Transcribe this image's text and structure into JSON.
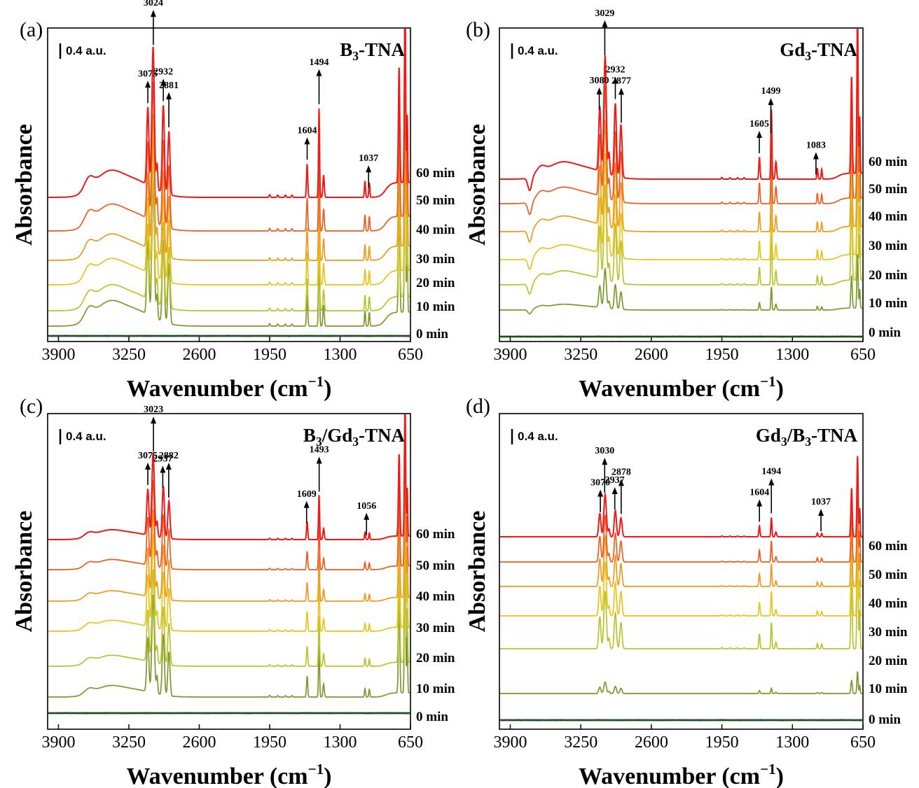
{
  "figure": {
    "colors": {
      "0 min": "#1e4d1e",
      "10 min": "#7c9a2c",
      "20 min": "#bcc22c",
      "30 min": "#e8c41c",
      "40 min": "#ef9a1e",
      "50 min": "#ee5c20",
      "60 min": "#ef1a1a"
    }
  },
  "chart_data": [
    {
      "panel": "(a)",
      "type": "line",
      "title": "B3-TNA",
      "title_parts": {
        "main": "B",
        "sub": "3",
        "rest": "-TNA"
      },
      "xlabel": "Wavenumber (cm−1)",
      "xlabel_parts": {
        "main": "Wavenumber (cm",
        "sup": "−1",
        "rest": ")"
      },
      "ylabel": "Absorbance",
      "scale_bar": "0.4 a.u.",
      "xlim": [
        4000,
        650
      ],
      "xticks": [
        3900,
        3250,
        2600,
        1950,
        1300,
        650
      ],
      "series": [
        {
          "name": "0 min"
        },
        {
          "name": "10 min"
        },
        {
          "name": "20 min"
        },
        {
          "name": "30 min"
        },
        {
          "name": "40 min"
        },
        {
          "name": "50 min"
        },
        {
          "name": "60 min"
        }
      ],
      "peak_labels": [
        {
          "text": "3075",
          "x": 3075
        },
        {
          "text": "3024",
          "x": 3024
        },
        {
          "text": "2932",
          "x": 2932
        },
        {
          "text": "2881",
          "x": 2881
        },
        {
          "text": "1604",
          "x": 1604
        },
        {
          "text": "1494",
          "x": 1494
        },
        {
          "text": "1037",
          "x": 1037
        }
      ]
    },
    {
      "panel": "(b)",
      "type": "line",
      "title": "Gd3-TNA",
      "title_parts": {
        "main": "Gd",
        "sub": "3",
        "rest": "-TNA"
      },
      "xlabel": "Wavenumber (cm−1)",
      "xlabel_parts": {
        "main": "Wavenumber (cm",
        "sup": "−1",
        "rest": ")"
      },
      "ylabel": "Absorbance",
      "scale_bar": "0.4 a.u.",
      "xlim": [
        4000,
        650
      ],
      "xticks": [
        3900,
        3250,
        2600,
        1950,
        1300,
        650
      ],
      "series": [
        {
          "name": "0 min"
        },
        {
          "name": "10 min"
        },
        {
          "name": "20 min"
        },
        {
          "name": "30 min"
        },
        {
          "name": "40 min"
        },
        {
          "name": "50 min"
        },
        {
          "name": "60 min"
        }
      ],
      "peak_labels": [
        {
          "text": "3080",
          "x": 3080
        },
        {
          "text": "3029",
          "x": 3029
        },
        {
          "text": "2932",
          "x": 2932
        },
        {
          "text": "2877",
          "x": 2877
        },
        {
          "text": "1605",
          "x": 1605
        },
        {
          "text": "1499",
          "x": 1499
        },
        {
          "text": "1083",
          "x": 1083
        }
      ]
    },
    {
      "panel": "(c)",
      "type": "line",
      "title": "B3/Gd3-TNA",
      "title_parts": {
        "main": "B",
        "sub": "3",
        "mid": "/Gd",
        "sub2": "3",
        "rest": "-TNA"
      },
      "xlabel": "Wavenumber (cm−1)",
      "xlabel_parts": {
        "main": "Wavenumber (cm",
        "sup": "−1",
        "rest": ")"
      },
      "ylabel": "Absorbance",
      "scale_bar": "0.4 a.u.",
      "xlim": [
        4000,
        650
      ],
      "xticks": [
        3900,
        3250,
        2600,
        1950,
        1300,
        650
      ],
      "series": [
        {
          "name": "0 min"
        },
        {
          "name": "10 min"
        },
        {
          "name": "20 min"
        },
        {
          "name": "30 min"
        },
        {
          "name": "40 min"
        },
        {
          "name": "50 min"
        },
        {
          "name": "60 min"
        }
      ],
      "peak_labels": [
        {
          "text": "3075",
          "x": 3075
        },
        {
          "text": "3023",
          "x": 3023
        },
        {
          "text": "2937",
          "x": 2937
        },
        {
          "text": "2882",
          "x": 2882
        },
        {
          "text": "1609",
          "x": 1609
        },
        {
          "text": "1493",
          "x": 1493
        },
        {
          "text": "1056",
          "x": 1056
        }
      ]
    },
    {
      "panel": "(d)",
      "type": "line",
      "title": "Gd3/B3-TNA",
      "title_parts": {
        "main": "Gd",
        "sub": "3",
        "mid": "/B",
        "sub2": "3",
        "rest": "-TNA"
      },
      "xlabel": "Wavenumber (cm−1)",
      "xlabel_parts": {
        "main": "Wavenumber (cm",
        "sup": "−1",
        "rest": ")"
      },
      "ylabel": "Absorbance",
      "scale_bar": "0.4 a.u.",
      "xlim": [
        4000,
        650
      ],
      "xticks": [
        3900,
        3250,
        2600,
        1950,
        1300,
        650
      ],
      "series": [
        {
          "name": "0 min"
        },
        {
          "name": "10 min"
        },
        {
          "name": "20 min"
        },
        {
          "name": "30 min"
        },
        {
          "name": "40 min"
        },
        {
          "name": "50 min"
        },
        {
          "name": "60 min"
        }
      ],
      "peak_labels": [
        {
          "text": "3070",
          "x": 3070
        },
        {
          "text": "3030",
          "x": 3030
        },
        {
          "text": "2937",
          "x": 2937
        },
        {
          "text": "2878",
          "x": 2878
        },
        {
          "text": "1604",
          "x": 1604
        },
        {
          "text": "1494",
          "x": 1494
        },
        {
          "text": "1037",
          "x": 1037
        }
      ]
    }
  ]
}
